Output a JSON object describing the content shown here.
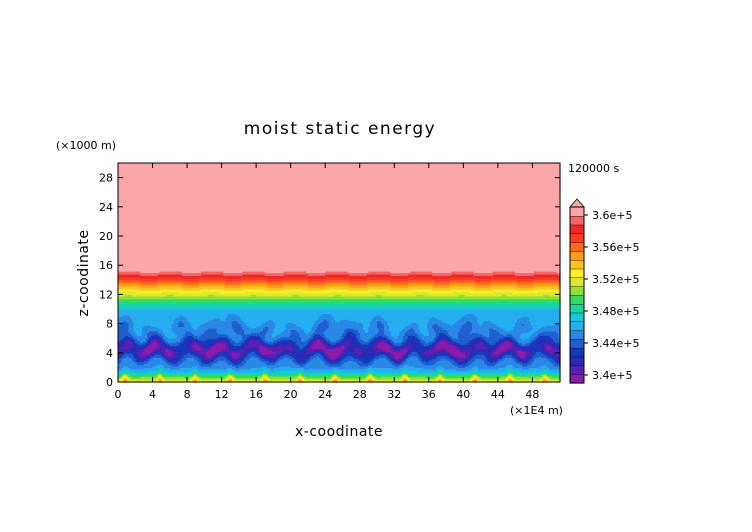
{
  "chart_data": {
    "type": "heatmap",
    "title": "moist static energy",
    "time_label": "120000 s",
    "xlabel": "x-coodinate",
    "ylabel": "z-coodinate",
    "x_unit": "(×1E4 m)",
    "y_unit": "(×1000 m)",
    "xlim": [
      0,
      51.2
    ],
    "ylim": [
      0,
      30
    ],
    "x_ticks": [
      "0",
      "4",
      "8",
      "12",
      "16",
      "20",
      "24",
      "28",
      "32",
      "36",
      "40",
      "44",
      "48"
    ],
    "y_ticks": [
      "0",
      "4",
      "8",
      "12",
      "16",
      "20",
      "24",
      "28"
    ],
    "colorbar": {
      "labels": [
        {
          "value": 360000,
          "text": "3.6e+5"
        },
        {
          "value": 356000,
          "text": "3.56e+5"
        },
        {
          "value": 352000,
          "text": "3.52e+5"
        },
        {
          "value": 348000,
          "text": "3.48e+5"
        },
        {
          "value": 344000,
          "text": "3.44e+5"
        },
        {
          "value": 340000,
          "text": "3.4e+5"
        }
      ],
      "range": [
        339000,
        361000
      ],
      "extend": "max",
      "colors": [
        "#8b1aa8",
        "#5a1fb5",
        "#2c2ab5",
        "#1538c0",
        "#1f5fd0",
        "#2a88e6",
        "#24aef0",
        "#17c9d6",
        "#19d5a0",
        "#33dc5a",
        "#8fe038",
        "#dde82c",
        "#fff02a",
        "#ffc21e",
        "#ff9a1a",
        "#ff6a1a",
        "#ff3a22",
        "#f02828",
        "#f46464",
        "#fba7a7"
      ]
    },
    "field_structure": {
      "upper_layer": {
        "z_from": 16,
        "z_to": 30,
        "approx_value": 361500
      },
      "gradient_layer": {
        "z_from": 9.5,
        "z_to": 15.5,
        "value_from": 346000,
        "value_to": 361000
      },
      "minimum_band": {
        "z_center": 4.5,
        "approx_value": 340000
      },
      "surface_layer": {
        "z_from": 0,
        "z_to": 1,
        "approx_value": 352000
      }
    }
  }
}
